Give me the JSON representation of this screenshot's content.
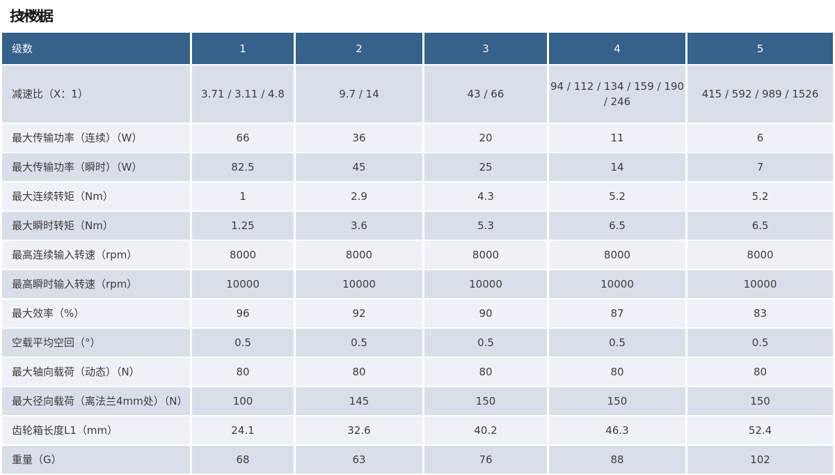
{
  "page": {
    "title": "技术数据"
  },
  "table": {
    "header": {
      "label_col": "级数",
      "columns": [
        "1",
        "2",
        "3",
        "4",
        "5"
      ]
    },
    "rows": [
      {
        "label": "减速比（X：1）",
        "values": [
          "3.71 / 3.11 / 4.8",
          "9.7 / 14",
          "43 / 66",
          "94 / 112 / 134 / 159 / 190 / 246",
          "415 / 592 / 989 / 1526"
        ]
      },
      {
        "label": "最大传输功率（连续）（W）",
        "values": [
          "66",
          "36",
          "20",
          "11",
          "6"
        ]
      },
      {
        "label": "最大传输功率（瞬时）（W）",
        "values": [
          "82.5",
          "45",
          "25",
          "14",
          "7"
        ]
      },
      {
        "label": "最大连续转矩（Nm）",
        "values": [
          "1",
          "2.9",
          "4.3",
          "5.2",
          "5.2"
        ]
      },
      {
        "label": "最大瞬时转矩（Nm）",
        "values": [
          "1.25",
          "3.6",
          "5.3",
          "6.5",
          "6.5"
        ]
      },
      {
        "label": "最高连续输入转速（rpm）",
        "values": [
          "8000",
          "8000",
          "8000",
          "8000",
          "8000"
        ]
      },
      {
        "label": "最高瞬时输入转速（rpm）",
        "values": [
          "10000",
          "10000",
          "10000",
          "10000",
          "10000"
        ]
      },
      {
        "label": "最大效率（%）",
        "values": [
          "96",
          "92",
          "90",
          "87",
          "83"
        ]
      },
      {
        "label": "空载平均空回（°）",
        "values": [
          "0.5",
          "0.5",
          "0.5",
          "0.5",
          "0.5"
        ]
      },
      {
        "label": "最大轴向载荷（动态）（N）",
        "values": [
          "80",
          "80",
          "80",
          "80",
          "80"
        ]
      },
      {
        "label": "最大径向载荷（离法兰4mm处）（N）",
        "values": [
          "100",
          "145",
          "150",
          "150",
          "150"
        ]
      },
      {
        "label": "齿轮箱长度L1（mm）",
        "values": [
          "24.1",
          "32.6",
          "40.2",
          "46.3",
          "52.4"
        ]
      },
      {
        "label": "重量（G）",
        "values": [
          "68",
          "63",
          "76",
          "88",
          "102"
        ]
      }
    ],
    "colors": {
      "header_bg": "#35618a",
      "header_text": "#f4f6f9",
      "row_dark_bg": "#d9dfe9",
      "row_light_bg": "#eef1f8",
      "cell_text": "#3c3c3c",
      "separator": "#ffffff"
    }
  }
}
